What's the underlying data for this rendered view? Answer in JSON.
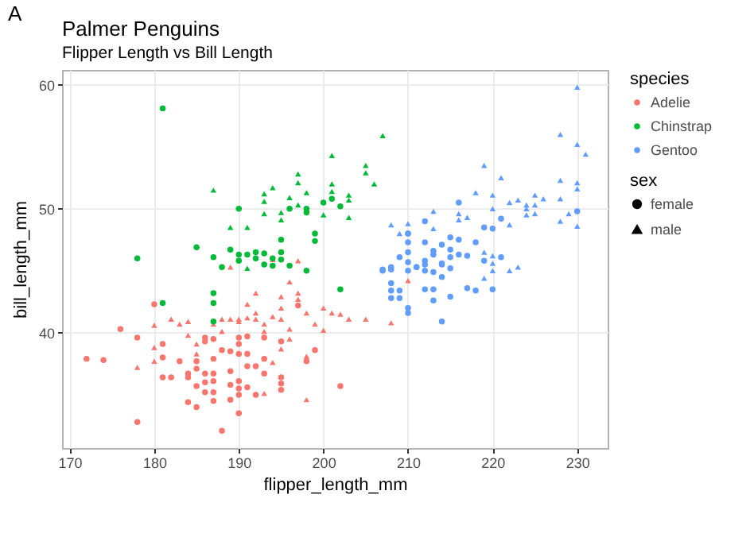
{
  "chart_data": {
    "type": "scatter",
    "title": "Palmer Penguins",
    "subtitle": "Flipper Length vs Bill Length",
    "xlabel": "flipper_length_mm",
    "ylabel": "bill_length_mm",
    "legend_title": [
      "species",
      "sex"
    ],
    "annotations": [
      "A"
    ],
    "xlim": [
      169.1,
      233.6
    ],
    "ylim": [
      30.7,
      61.2
    ],
    "xticks": [
      170,
      180,
      190,
      200,
      210,
      220,
      230
    ],
    "yticks": [
      40,
      50,
      60
    ],
    "grid": true,
    "legend": "right",
    "series": [
      {
        "name": "Adelie",
        "color": "#f8766d",
        "x": [
          172,
          174,
          176,
          178,
          178,
          180,
          181,
          181,
          181,
          182,
          183,
          184,
          184,
          184,
          185,
          185,
          185,
          185,
          186,
          186,
          186,
          186,
          186,
          187,
          187,
          187,
          187,
          187,
          187,
          188,
          188,
          189,
          189,
          189,
          189,
          190,
          190,
          190,
          190,
          190,
          190,
          190,
          191,
          191,
          191,
          191,
          192,
          192,
          193,
          193,
          193,
          195,
          195,
          195,
          195,
          197,
          198,
          199,
          202,
          178,
          180,
          180,
          180,
          182,
          183,
          184,
          184,
          185,
          185,
          187,
          188,
          188,
          189,
          189,
          190,
          190,
          191,
          191,
          192,
          192,
          192,
          193,
          193,
          193,
          194,
          194,
          194,
          195,
          195,
          195,
          195,
          196,
          196,
          196,
          197,
          197,
          197,
          198,
          198,
          198,
          199,
          200,
          200,
          201,
          202,
          203,
          205,
          208,
          210
        ],
        "values": [
          37.9,
          37.8,
          40.3,
          39.6,
          32.8,
          42.3,
          39.1,
          38.0,
          36.4,
          36.4,
          37.7,
          36.7,
          36.4,
          34.4,
          37.7,
          37.1,
          35.7,
          34.0,
          39.6,
          39.3,
          36.7,
          36.0,
          35.2,
          39.5,
          37.9,
          36.7,
          36.1,
          35.2,
          34.5,
          38.6,
          32.1,
          38.5,
          36.9,
          35.8,
          34.6,
          39.6,
          39.1,
          38.3,
          36.1,
          35.5,
          33.5,
          35.0,
          39.7,
          38.3,
          37.3,
          35.6,
          37.3,
          35.0,
          39.6,
          37.9,
          36.7,
          39.3,
          36.4,
          35.9,
          35.4,
          42.2,
          37.7,
          38.6,
          35.7,
          37.2,
          40.6,
          38.8,
          37.7,
          41.1,
          40.7,
          40.9,
          39.8,
          39.1,
          38.3,
          40.7,
          41.1,
          40.1,
          41.1,
          45.3,
          40.9,
          41.1,
          42.3,
          41.2,
          43.2,
          41.6,
          41.1,
          40.7,
          40.1,
          35.1,
          41.3,
          37.6,
          45.9,
          42.9,
          42.0,
          41.1,
          38.7,
          44.1,
          40.3,
          39.5,
          43.2,
          42.7,
          45.8,
          41.6,
          38.1,
          34.6,
          40.7,
          42.0,
          40.2,
          41.6,
          41.5,
          41.1,
          41.1,
          40.8,
          44.2
        ],
        "marker": [
          "circle",
          "circle",
          "circle",
          "circle",
          "circle",
          "circle",
          "circle",
          "circle",
          "circle",
          "circle",
          "circle",
          "circle",
          "circle",
          "circle",
          "circle",
          "circle",
          "circle",
          "circle",
          "circle",
          "circle",
          "circle",
          "circle",
          "circle",
          "circle",
          "circle",
          "circle",
          "circle",
          "circle",
          "circle",
          "circle",
          "circle",
          "circle",
          "circle",
          "circle",
          "circle",
          "circle",
          "circle",
          "circle",
          "circle",
          "circle",
          "circle",
          "circle",
          "circle",
          "circle",
          "circle",
          "circle",
          "circle",
          "circle",
          "circle",
          "circle",
          "circle",
          "circle",
          "circle",
          "circle",
          "circle",
          "circle",
          "circle",
          "circle",
          "circle",
          "triangle",
          "triangle",
          "triangle",
          "triangle",
          "triangle",
          "triangle",
          "triangle",
          "triangle",
          "triangle",
          "triangle",
          "triangle",
          "triangle",
          "triangle",
          "triangle",
          "triangle",
          "triangle",
          "triangle",
          "triangle",
          "triangle",
          "triangle",
          "triangle",
          "triangle",
          "triangle",
          "triangle",
          "triangle",
          "triangle",
          "triangle",
          "triangle",
          "triangle",
          "triangle",
          "triangle",
          "triangle",
          "triangle",
          "triangle",
          "triangle",
          "triangle",
          "triangle",
          "triangle",
          "triangle",
          "triangle",
          "triangle",
          "triangle",
          "triangle",
          "triangle",
          "triangle",
          "triangle",
          "triangle",
          "triangle",
          "triangle",
          "triangle"
        ]
      },
      {
        "name": "Chinstrap",
        "color": "#00ba38",
        "x": [
          181,
          190,
          178,
          185,
          187,
          189,
          190,
          191,
          188,
          190,
          181,
          187,
          187,
          187,
          196,
          198,
          198,
          201,
          200,
          202,
          195,
          199,
          199,
          192,
          192,
          193,
          194,
          194,
          195,
          195,
          196,
          198,
          193,
          202,
          187,
          191,
          191,
          207,
          201,
          205,
          205,
          197,
          197,
          194,
          193,
          193,
          196,
          198,
          201,
          201,
          203,
          203,
          206,
          197,
          193,
          195,
          195,
          200,
          203,
          189
        ],
        "values": [
          58.1,
          50.0,
          46.0,
          46.9,
          46.1,
          46.7,
          46.3,
          46.3,
          45.3,
          45.8,
          42.4,
          43.2,
          42.4,
          40.9,
          50.0,
          50.0,
          49.7,
          50.8,
          50.5,
          50.2,
          47.5,
          48.0,
          47.4,
          46.5,
          46.0,
          46.4,
          46.0,
          45.4,
          46.5,
          45.9,
          45.4,
          45.0,
          45.5,
          43.5,
          51.5,
          48.5,
          45.2,
          55.9,
          54.3,
          53.5,
          52.9,
          52.8,
          52.1,
          51.7,
          51.2,
          50.6,
          50.9,
          51.3,
          52.0,
          51.4,
          51.1,
          50.7,
          52.0,
          50.3,
          49.6,
          49.7,
          49.1,
          49.5,
          49.3,
          48.5
        ],
        "marker": [
          "circle",
          "circle",
          "circle",
          "circle",
          "circle",
          "circle",
          "circle",
          "circle",
          "circle",
          "circle",
          "circle",
          "circle",
          "circle",
          "circle",
          "circle",
          "circle",
          "circle",
          "circle",
          "circle",
          "circle",
          "circle",
          "circle",
          "circle",
          "circle",
          "circle",
          "circle",
          "circle",
          "circle",
          "circle",
          "circle",
          "circle",
          "circle",
          "circle",
          "circle",
          "triangle",
          "triangle",
          "triangle",
          "triangle",
          "triangle",
          "triangle",
          "triangle",
          "triangle",
          "triangle",
          "triangle",
          "triangle",
          "triangle",
          "triangle",
          "triangle",
          "triangle",
          "triangle",
          "triangle",
          "triangle",
          "triangle",
          "triangle",
          "triangle",
          "triangle",
          "triangle",
          "triangle",
          "triangle",
          "triangle"
        ]
      },
      {
        "name": "Gentoo",
        "color": "#619cff",
        "x": [
          216,
          221,
          220,
          219,
          230,
          212,
          213,
          214,
          215,
          215,
          215,
          216,
          216,
          217,
          218,
          221,
          214,
          212,
          212,
          210,
          210,
          210,
          209,
          208,
          207,
          210,
          210,
          211,
          212,
          213,
          210,
          212,
          213,
          214,
          215,
          214,
          219,
          213,
          213,
          215,
          217,
          218,
          220,
          214,
          207,
          208,
          208,
          208,
          208,
          209,
          209,
          210,
          210,
          211,
          212,
          230,
          228,
          230,
          231,
          219,
          221,
          228,
          230,
          230,
          218,
          220,
          222,
          223,
          225,
          226,
          228,
          224,
          224,
          224,
          225,
          225,
          213,
          216,
          216,
          217,
          220,
          222,
          228,
          229,
          230,
          213,
          219,
          220,
          222,
          210,
          208,
          209,
          220,
          220,
          223,
          219
        ],
        "values": [
          50.5,
          49.2,
          48.4,
          48.5,
          49.8,
          47.3,
          46.3,
          47.1,
          47.7,
          46.7,
          46.1,
          47.5,
          46.3,
          46.2,
          47.3,
          46.1,
          45.5,
          45.5,
          49.0,
          48.0,
          47.3,
          46.5,
          46.1,
          45.1,
          45.0,
          45.7,
          45.0,
          45.3,
          45.8,
          46.6,
          48.0,
          45.0,
          44.9,
          44.5,
          45.2,
          45.6,
          45.8,
          43.5,
          42.6,
          42.9,
          43.6,
          43.4,
          43.5,
          40.9,
          45.1,
          45.3,
          44.0,
          43.4,
          42.8,
          43.4,
          42.8,
          42.0,
          41.6,
          45.3,
          43.5,
          59.8,
          56.0,
          55.2,
          54.4,
          53.5,
          52.5,
          52.3,
          52.1,
          51.6,
          51.3,
          51.1,
          50.5,
          50.7,
          51.1,
          50.8,
          50.8,
          50.3,
          50.0,
          49.5,
          50.3,
          49.6,
          49.8,
          49.6,
          49.1,
          49.3,
          50.0,
          48.7,
          49.0,
          49.6,
          48.6,
          48.4,
          46.5,
          46.2,
          45.0,
          48.8,
          48.7,
          48.0,
          45.6,
          45.0,
          45.3,
          44.4
        ],
        "marker": [
          "circle",
          "circle",
          "circle",
          "circle",
          "circle",
          "circle",
          "circle",
          "circle",
          "circle",
          "circle",
          "circle",
          "circle",
          "circle",
          "circle",
          "circle",
          "circle",
          "circle",
          "circle",
          "circle",
          "circle",
          "circle",
          "circle",
          "circle",
          "circle",
          "circle",
          "circle",
          "circle",
          "circle",
          "circle",
          "circle",
          "circle",
          "circle",
          "circle",
          "circle",
          "circle",
          "circle",
          "circle",
          "circle",
          "circle",
          "circle",
          "circle",
          "circle",
          "circle",
          "circle",
          "circle",
          "circle",
          "circle",
          "circle",
          "circle",
          "circle",
          "circle",
          "circle",
          "circle",
          "circle",
          "circle",
          "triangle",
          "triangle",
          "triangle",
          "triangle",
          "triangle",
          "triangle",
          "triangle",
          "triangle",
          "triangle",
          "triangle",
          "triangle",
          "triangle",
          "triangle",
          "triangle",
          "triangle",
          "triangle",
          "triangle",
          "triangle",
          "triangle",
          "triangle",
          "triangle",
          "triangle",
          "triangle",
          "triangle",
          "triangle",
          "triangle",
          "triangle",
          "triangle",
          "triangle",
          "triangle",
          "triangle",
          "triangle",
          "triangle",
          "triangle",
          "triangle",
          "triangle",
          "triangle",
          "triangle",
          "triangle",
          "triangle",
          "triangle"
        ]
      },
      {
        "name": "female",
        "color": "#000000",
        "marker": "circle"
      },
      {
        "name": "male",
        "color": "#000000",
        "marker": "triangle"
      }
    ]
  }
}
